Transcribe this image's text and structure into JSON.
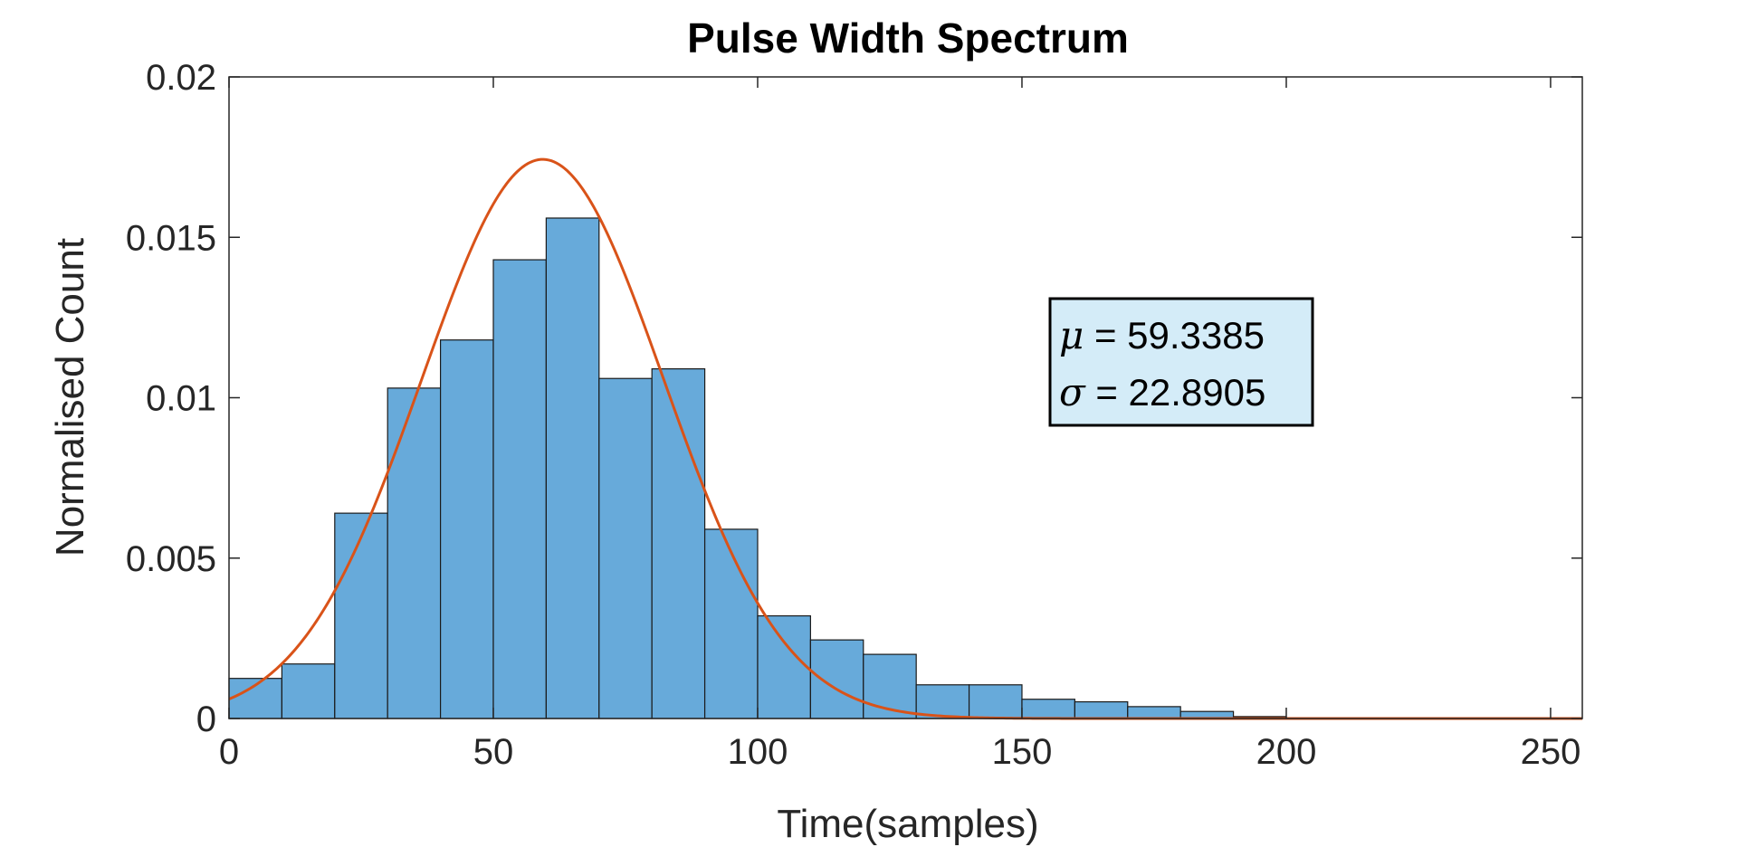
{
  "chart_data": {
    "type": "bar",
    "title": "Pulse Width Spectrum",
    "xlabel": "Time(samples)",
    "ylabel": "Normalised Count",
    "xlim": [
      0,
      256
    ],
    "ylim": [
      0,
      0.02
    ],
    "xticks": [
      0,
      50,
      100,
      150,
      200,
      250
    ],
    "xtick_labels": [
      "0",
      "50",
      "100",
      "150",
      "200",
      "250"
    ],
    "yticks": [
      0,
      0.005,
      0.01,
      0.015,
      0.02
    ],
    "ytick_labels": [
      "0",
      "0.005",
      "0.01",
      "0.015",
      "0.02"
    ],
    "grid": false,
    "bin_width": 10,
    "bin_edges_start": [
      0,
      10,
      20,
      30,
      40,
      50,
      60,
      70,
      80,
      90,
      100,
      110,
      120,
      130,
      140,
      150,
      160,
      170,
      180,
      190
    ],
    "values": [
      0.00125,
      0.0017,
      0.0064,
      0.0103,
      0.0118,
      0.0143,
      0.0156,
      0.0106,
      0.0109,
      0.0059,
      0.0032,
      0.00245,
      0.002,
      0.00105,
      0.00105,
      0.0006,
      0.00052,
      0.00037,
      0.00022,
      6e-05
    ],
    "fit": {
      "type": "normal",
      "mu": 59.3385,
      "sigma": 22.8905,
      "peak": 0.01743
    },
    "annotation": {
      "mu_symbol": "μ",
      "mu_text": " = 59.3385",
      "sigma_symbol": "σ",
      "sigma_text": " = 22.8905"
    },
    "colors": {
      "bar_fill": "#67AADA",
      "bar_edge": "#1a1a1a",
      "fit_line": "#D95319",
      "annot_bg": "#D4ECF8",
      "axis": "#262626"
    }
  }
}
